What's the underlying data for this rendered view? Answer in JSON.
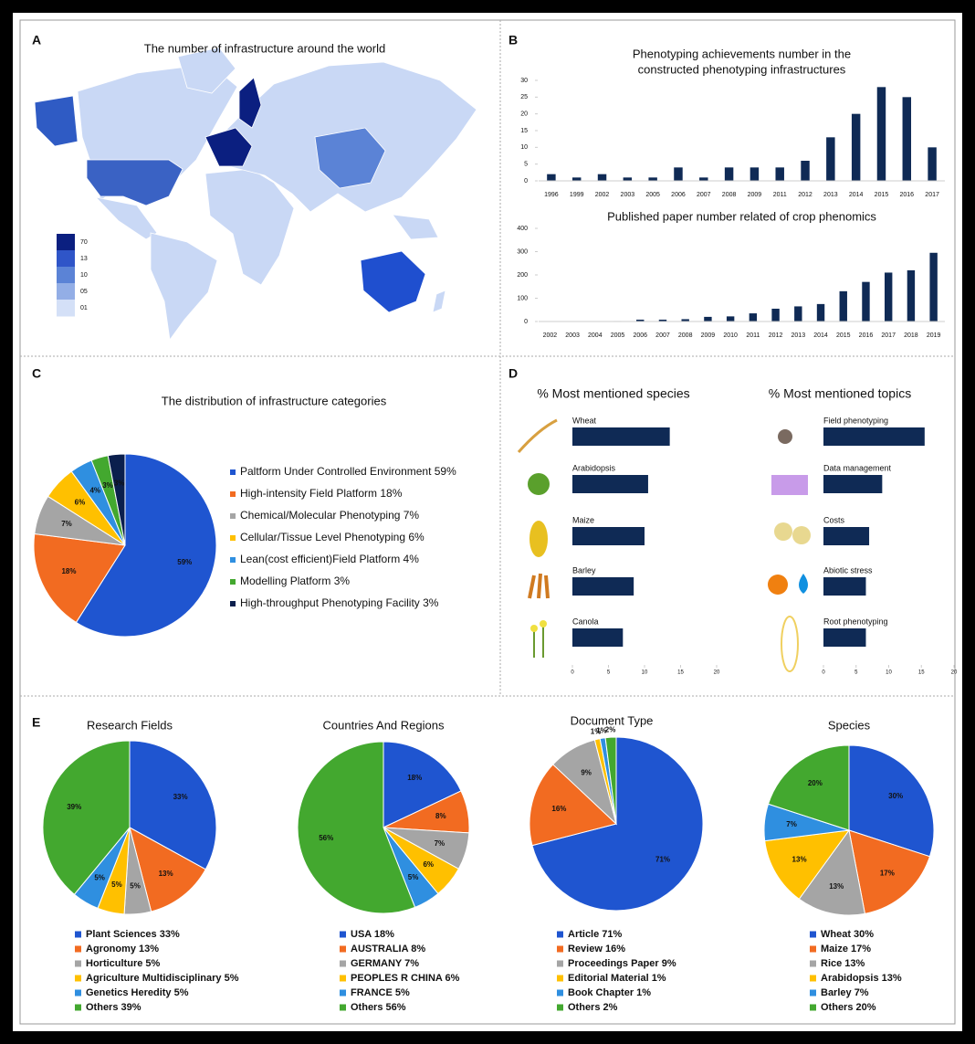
{
  "panel_labels": [
    "A",
    "B",
    "C",
    "D",
    "E"
  ],
  "chart_data": [
    {
      "type": "map",
      "title": "The number of infrastructure around the world",
      "colorbar_labels": [
        "70",
        "13",
        "10",
        "05",
        "01"
      ]
    },
    {
      "type": "bar",
      "title": [
        "Phenotyping achievements number in the",
        "constructed phenotyping infrastructures"
      ],
      "categories": [
        "1996",
        "1999",
        "2002",
        "2003",
        "2005",
        "2006",
        "2007",
        "2008",
        "2009",
        "2011",
        "2012",
        "2013",
        "2014",
        "2015",
        "2016",
        "2017"
      ],
      "values": [
        2,
        1,
        2,
        1,
        1,
        4,
        1,
        4,
        4,
        4,
        6,
        13,
        20,
        28,
        25,
        10
      ],
      "color": "#0f2a55",
      "ylim": [
        0,
        30
      ],
      "yticks": [
        0,
        5,
        10,
        15,
        20,
        25,
        30
      ]
    },
    {
      "type": "bar",
      "title": [
        "Published paper number related of crop phenomics"
      ],
      "categories": [
        "2002",
        "2003",
        "2004",
        "2005",
        "2006",
        "2007",
        "2008",
        "2009",
        "2010",
        "2011",
        "2012",
        "2013",
        "2014",
        "2015",
        "2016",
        "2017",
        "2018",
        "2019"
      ],
      "values": [
        0,
        0,
        0,
        2,
        8,
        8,
        10,
        20,
        22,
        35,
        55,
        65,
        75,
        130,
        170,
        210,
        220,
        295
      ],
      "color": "#0f2a55",
      "ylim": [
        0,
        400
      ],
      "yticks": [
        0,
        100,
        200,
        300,
        400
      ]
    },
    {
      "type": "pie",
      "title": "The distribution of infrastructure categories",
      "categories": [
        "Paltform Under Controlled Environment 59%",
        "High-intensity Field Platform 18%",
        "Chemical/Molecular Phenotyping 7%",
        "Cellular/Tissue Level Phenotyping 6%",
        "Lean(cost efficient)Field Platform 4%",
        "Modelling Platform 3%",
        "High-throughput Phenotyping Facility 3%"
      ],
      "values": [
        59,
        18,
        7,
        6,
        4,
        3,
        3
      ],
      "value_labels": [
        "59%",
        "18%",
        "7%",
        "6%",
        "4%",
        "3%",
        "3%"
      ],
      "colors": [
        "#1f55d0",
        "#f26b21",
        "#a5a5a5",
        "#ffc000",
        "#2f8fe0",
        "#43a82f",
        "#0b1f4d"
      ]
    },
    {
      "type": "hbar",
      "title": "% Most mentioned species",
      "categories": [
        "Wheat",
        "Arabidopsis",
        "Maize",
        "Barley",
        "Canola"
      ],
      "values": [
        13.5,
        10.5,
        10,
        8.5,
        7
      ],
      "color": "#0f2a55",
      "xlim": [
        0,
        20
      ],
      "xticks": [
        0,
        5,
        10,
        15,
        20
      ]
    },
    {
      "type": "hbar",
      "title": "% Most mentioned topics",
      "categories": [
        "Field phenotyping",
        "Data management",
        "Costs",
        "Abiotic stress",
        "Root phenotyping"
      ],
      "values": [
        15.5,
        9,
        7,
        6.5,
        6.5
      ],
      "color": "#0f2a55",
      "xlim": [
        0,
        20
      ],
      "xticks": [
        0,
        5,
        10,
        15,
        20
      ]
    },
    {
      "type": "pie",
      "title": "Research Fields",
      "categories": [
        "Plant Sciences 33%",
        "Agronomy 13%",
        "Horticulture 5%",
        "Agriculture Multidisciplinary 5%",
        "Genetics Heredity 5%",
        "Others 39%"
      ],
      "values": [
        33,
        13,
        5,
        5,
        5,
        39
      ],
      "value_labels": [
        "33%",
        "13%",
        "5%",
        "5%",
        "5%",
        "39%"
      ],
      "colors": [
        "#1f55d0",
        "#f26b21",
        "#a5a5a5",
        "#ffc000",
        "#2f8fe0",
        "#43a82f"
      ]
    },
    {
      "type": "pie",
      "title": "Countries And Regions",
      "categories": [
        "USA 18%",
        "AUSTRALIA 8%",
        "GERMANY 7%",
        "PEOPLES R CHINA 6%",
        "FRANCE 5%",
        "Others 56%"
      ],
      "values": [
        18,
        8,
        7,
        6,
        5,
        56
      ],
      "value_labels": [
        "18%",
        "8%",
        "7%",
        "6%",
        "5%",
        "56%"
      ],
      "colors": [
        "#1f55d0",
        "#f26b21",
        "#a5a5a5",
        "#ffc000",
        "#2f8fe0",
        "#43a82f"
      ]
    },
    {
      "type": "pie",
      "title": "Document Type",
      "categories": [
        "Article 71%",
        "Review 16%",
        "Proceedings Paper 9%",
        "Editorial Material 1%",
        "Book Chapter 1%",
        "Others 2%"
      ],
      "values": [
        71,
        16,
        9,
        1,
        1,
        2
      ],
      "value_labels": [
        "71%",
        "16%",
        "9%",
        "1%",
        "1%",
        "2%"
      ],
      "colors": [
        "#1f55d0",
        "#f26b21",
        "#a5a5a5",
        "#ffc000",
        "#2f8fe0",
        "#43a82f"
      ]
    },
    {
      "type": "pie",
      "title": "Species",
      "categories": [
        "Wheat 30%",
        "Maize 17%",
        "Rice 13%",
        "Arabidopsis 13%",
        "Barley 7%",
        "Others 20%"
      ],
      "values": [
        30,
        17,
        13,
        13,
        7,
        20
      ],
      "value_labels": [
        "30%",
        "17%",
        "13%",
        "13%",
        "7%",
        "20%"
      ],
      "colors": [
        "#1f55d0",
        "#f26b21",
        "#a5a5a5",
        "#ffc000",
        "#2f8fe0",
        "#43a82f"
      ]
    }
  ]
}
